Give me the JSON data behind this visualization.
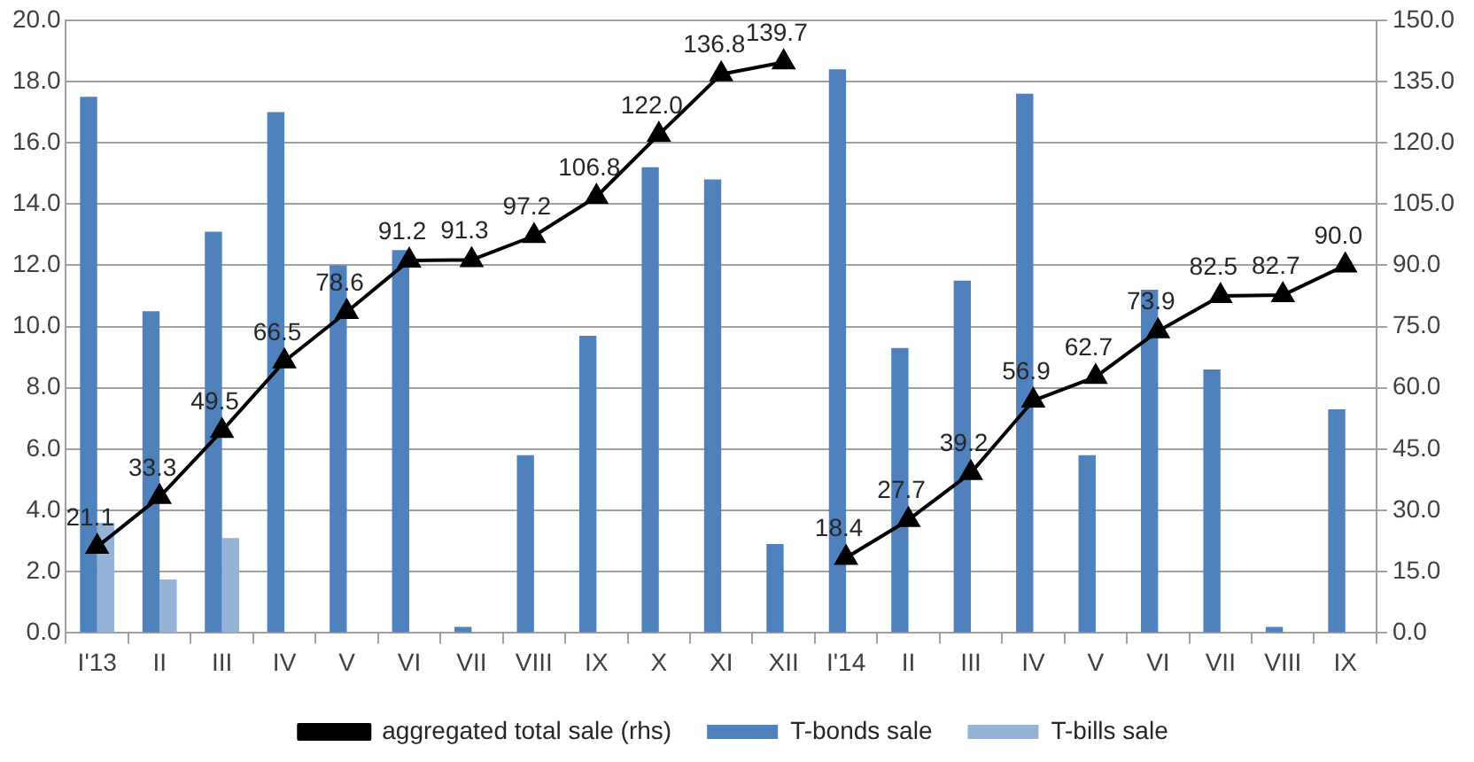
{
  "chart_data": {
    "type": "bar",
    "categories": [
      "I'13",
      "II",
      "III",
      "IV",
      "V",
      "VI",
      "VII",
      "VIII",
      "IX",
      "X",
      "XI",
      "XII",
      "I'14",
      "II",
      "III",
      "IV",
      "V",
      "VI",
      "VII",
      "VIII",
      "IX"
    ],
    "series": [
      {
        "name": "T-bonds sale",
        "color": "#4f81bd",
        "values": [
          17.5,
          10.5,
          13.1,
          17.0,
          12.0,
          12.5,
          0.2,
          5.8,
          9.7,
          15.2,
          14.8,
          2.9,
          18.4,
          9.3,
          11.5,
          17.6,
          5.8,
          11.2,
          8.6,
          0.2,
          7.3
        ]
      },
      {
        "name": "T-bills sale",
        "color": "#95b3d7",
        "values": [
          3.6,
          1.75,
          3.1,
          null,
          null,
          null,
          null,
          null,
          null,
          null,
          null,
          null,
          null,
          null,
          null,
          null,
          null,
          null,
          null,
          null,
          null
        ]
      },
      {
        "name": "aggregated total sale (rhs)",
        "type": "line",
        "axis": "y2",
        "color": "#000000",
        "marker": "triangle",
        "values": [
          21.1,
          33.3,
          49.5,
          66.5,
          78.6,
          91.2,
          91.3,
          97.2,
          106.8,
          122.0,
          136.8,
          139.7,
          null,
          null,
          null,
          null,
          null,
          null,
          null,
          null,
          null
        ],
        "value_labels": [
          "21.1",
          "33.3",
          "49.5",
          "66.5",
          "78.6",
          "91.2",
          "91.3",
          "97.2",
          "106.8",
          "122.0",
          "136.8",
          "139.7",
          null,
          null,
          null,
          null,
          null,
          null,
          null,
          null,
          null
        ]
      },
      {
        "type": "line",
        "axis": "y2",
        "color": "#000000",
        "marker": "triangle",
        "values": [
          null,
          null,
          null,
          null,
          null,
          null,
          null,
          null,
          null,
          null,
          null,
          null,
          18.4,
          27.7,
          39.2,
          56.9,
          62.7,
          73.9,
          82.5,
          82.7,
          90.0
        ],
        "value_labels": [
          null,
          null,
          null,
          null,
          null,
          null,
          null,
          null,
          null,
          null,
          null,
          null,
          "18.4",
          "27.7",
          "39.2",
          "56.9",
          "62.7",
          "73.9",
          "82.5",
          "82.7",
          "90.0"
        ]
      }
    ],
    "ylim": [
      0,
      20
    ],
    "yticks": [
      {
        "value": 0,
        "label": "0.0"
      },
      {
        "value": 2,
        "label": "2.0"
      },
      {
        "value": 4,
        "label": "4.0"
      },
      {
        "value": 6,
        "label": "6.0"
      },
      {
        "value": 8,
        "label": "8.0"
      },
      {
        "value": 10,
        "label": "10.0"
      },
      {
        "value": 12,
        "label": "12.0"
      },
      {
        "value": 14,
        "label": "14.0"
      },
      {
        "value": 16,
        "label": "16.0"
      },
      {
        "value": 18,
        "label": "18.0"
      },
      {
        "value": 20,
        "label": "20.0"
      }
    ],
    "y2lim": [
      0,
      150
    ],
    "y2ticks": [
      {
        "value": 0,
        "label": "0.0"
      },
      {
        "value": 15,
        "label": "15.0"
      },
      {
        "value": 30,
        "label": "30.0"
      },
      {
        "value": 45,
        "label": "45.0"
      },
      {
        "value": 60,
        "label": "60.0"
      },
      {
        "value": 75,
        "label": "75.0"
      },
      {
        "value": 90,
        "label": "90.0"
      },
      {
        "value": 105,
        "label": "105.0"
      },
      {
        "value": 120,
        "label": "120.0"
      },
      {
        "value": 135,
        "label": "135.0"
      },
      {
        "value": 150,
        "label": "150.0"
      }
    ],
    "grid": "y",
    "legend": "bottom"
  }
}
